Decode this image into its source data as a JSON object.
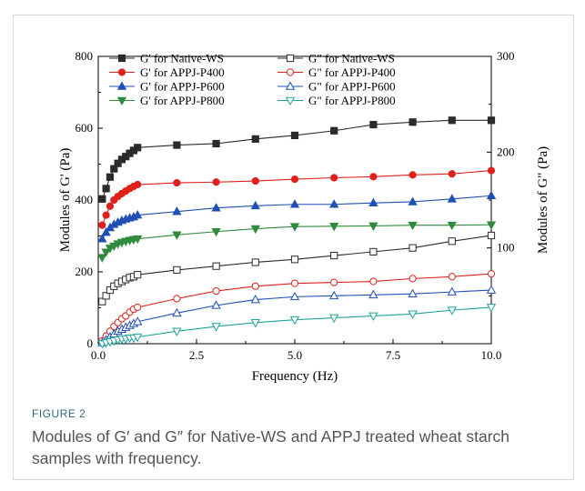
{
  "figure": {
    "label": "FIGURE 2",
    "caption": "Modules of G′ and G″ for Native-WS and APPJ treated wheat starch samples with frequency."
  },
  "chart_data": {
    "type": "line",
    "title": "",
    "xlabel": "Frequency (Hz)",
    "ylabel_left": "Modules of G' (Pa)",
    "ylabel_right": "Modules of G\" (Pa)",
    "xlim": [
      0,
      10
    ],
    "ylim_left": [
      0,
      800
    ],
    "ylim_right": [
      0,
      300
    ],
    "x_ticks": [
      "0.0",
      "2.5",
      "5.0",
      "7.5",
      "10.0"
    ],
    "y_left_ticks": [
      "0",
      "200",
      "400",
      "600",
      "800"
    ],
    "y_right_ticks": [
      "100",
      "200",
      "300"
    ],
    "grid": false,
    "legend_position": "top",
    "x": [
      0.1,
      0.2,
      0.3,
      0.4,
      0.5,
      0.6,
      0.7,
      0.8,
      0.9,
      1,
      2,
      3,
      4,
      5,
      6,
      7,
      8,
      9,
      10
    ],
    "series": [
      {
        "name": "G' for Native-WS",
        "axis": "left",
        "color": "#2b2b2b",
        "marker": "square",
        "filled": true,
        "values": [
          403,
          432,
          464,
          487,
          502,
          513,
          521,
          530,
          538,
          546,
          553,
          557,
          570,
          580,
          593,
          610,
          617,
          622,
          622
        ]
      },
      {
        "name": "G\" for Native-WS",
        "axis": "right",
        "color": "#2b2b2b",
        "marker": "square",
        "filled": false,
        "values": [
          44,
          50,
          56,
          60,
          63,
          65,
          67,
          69,
          70,
          72,
          77,
          81,
          85,
          88,
          92,
          96,
          100,
          107,
          113
        ]
      },
      {
        "name": "G' for APPJ-P400",
        "axis": "left",
        "color": "#e0201b",
        "marker": "circle",
        "filled": true,
        "values": [
          330,
          358,
          383,
          400,
          410,
          418,
          425,
          432,
          438,
          443,
          448,
          450,
          453,
          458,
          462,
          465,
          470,
          473,
          482
        ]
      },
      {
        "name": "G\" for APPJ-P400",
        "axis": "right",
        "color": "#e0201b",
        "marker": "circle",
        "filled": false,
        "values": [
          3,
          8,
          13,
          18,
          22,
          26,
          29,
          33,
          36,
          38,
          47,
          55,
          60,
          63,
          64,
          65,
          68,
          70,
          73
        ]
      },
      {
        "name": "G' for APPJ-P600",
        "axis": "left",
        "color": "#1f4fb5",
        "marker": "triangle-up",
        "filled": true,
        "values": [
          292,
          310,
          323,
          332,
          338,
          343,
          347,
          350,
          353,
          358,
          368,
          378,
          384,
          388,
          388,
          392,
          395,
          403,
          412
        ]
      },
      {
        "name": "G\" for APPJ-P600",
        "axis": "right",
        "color": "#1f4fb5",
        "marker": "triangle-up",
        "filled": false,
        "values": [
          1,
          4,
          7,
          10,
          13,
          15,
          17,
          19,
          21,
          23,
          32,
          40,
          46,
          49,
          50,
          51,
          52,
          54,
          56
        ]
      },
      {
        "name": "G' for APPJ-P800",
        "axis": "left",
        "color": "#2f8a3c",
        "marker": "triangle-down",
        "filled": true,
        "values": [
          240,
          255,
          266,
          272,
          278,
          282,
          285,
          288,
          290,
          292,
          303,
          312,
          320,
          326,
          327,
          328,
          330,
          330,
          331
        ]
      },
      {
        "name": "G\" for APPJ-P800",
        "axis": "right",
        "color": "#1fa39b",
        "marker": "triangle-down",
        "filled": false,
        "values": [
          0,
          1,
          2,
          3,
          4,
          5,
          5,
          6,
          6,
          7,
          13,
          18,
          22,
          25,
          27,
          29,
          31,
          35,
          38
        ]
      }
    ]
  }
}
